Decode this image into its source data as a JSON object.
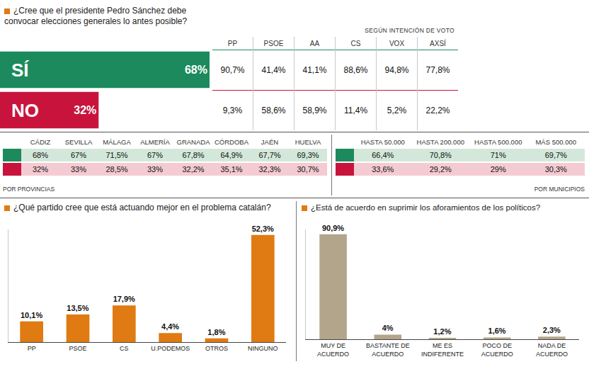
{
  "chart_data": [
    {
      "type": "bar",
      "orientation": "horizontal",
      "title": "¿Cree que el presidente Pedro Sánchez debe convocar elecciones generales lo antes posible?",
      "categories": [
        "SÍ",
        "NO"
      ],
      "values": [
        68,
        32
      ],
      "value_labels": [
        "68%",
        "32%"
      ],
      "colors": [
        "#1c8a5c",
        "#c8143c"
      ],
      "xlim": [
        0,
        68
      ],
      "tick_labels": false,
      "data_labels": true
    },
    {
      "type": "bar",
      "title": "¿Qué partido cree que está actuando mejor en el problema catalán?",
      "categories": [
        "PP",
        "PSOE",
        "CS",
        "U.PODEMOS",
        "OTROS",
        "NINGUNO"
      ],
      "values": [
        10.1,
        13.5,
        17.9,
        4.4,
        1.8,
        52.3
      ],
      "value_labels": [
        "10,1%",
        "13,5%",
        "17,9%",
        "4,4%",
        "1,8%",
        "52,3%"
      ],
      "color": "#e07a12",
      "ylim": [
        0,
        55
      ],
      "tick_labels": "x",
      "data_labels": true
    },
    {
      "type": "bar",
      "title": "¿Está de acuerdo en suprimir los aforamientos de los políticos?",
      "categories": [
        "MUY DE ACUERDO",
        "BASTANTE DE ACUERDO",
        "ME ES INDIFERENTE",
        "POCO DE ACUERDO",
        "NADA DE ACUERDO"
      ],
      "values": [
        90.9,
        4,
        1.2,
        1.6,
        2.3
      ],
      "value_labels": [
        "90,9%",
        "4%",
        "1,2%",
        "1,6%",
        "2,3%"
      ],
      "color": "#b3a58b",
      "ylim": [
        0,
        95
      ],
      "tick_labels": "x",
      "data_labels": true
    }
  ],
  "vote_intention": {
    "title": "SEGÚN INTENCIÓN DE VOTO",
    "columns": [
      "PP",
      "PSOE",
      "AA",
      "CS",
      "VOX",
      "AXSÍ"
    ],
    "rows": [
      [
        "90,7%",
        "41,4%",
        "41,1%",
        "88,6%",
        "94,8%",
        "77,8%"
      ],
      [
        "9,3%",
        "58,6%",
        "58,9%",
        "11,4%",
        "5,2%",
        "22,2%"
      ]
    ]
  },
  "provinces": {
    "title": "POR PROVINCIAS",
    "columns": [
      "CÁDIZ",
      "SEVILLA",
      "MÁLAGA",
      "ALMERÍA",
      "GRANADA",
      "CÓRDOBA",
      "JAÉN",
      "HUELVA"
    ],
    "rows": [
      [
        "68%",
        "67%",
        "71,5%",
        "67%",
        "67,8%",
        "64,9%",
        "67,7%",
        "69,3%"
      ],
      [
        "32%",
        "33%",
        "28,5%",
        "33%",
        "32,2%",
        "35,1%",
        "32,3%",
        "30,7%"
      ]
    ]
  },
  "municipalities": {
    "title": "POR MUNICIPIOS",
    "columns": [
      "HASTA 50.000",
      "HASTA 200.000",
      "HASTA 500.000",
      "MÁS 500.000"
    ],
    "rows": [
      [
        "66,4%",
        "70,8%",
        "71%",
        "69,7%"
      ],
      [
        "33,6%",
        "29,2%",
        "29%",
        "30,3%"
      ]
    ]
  }
}
